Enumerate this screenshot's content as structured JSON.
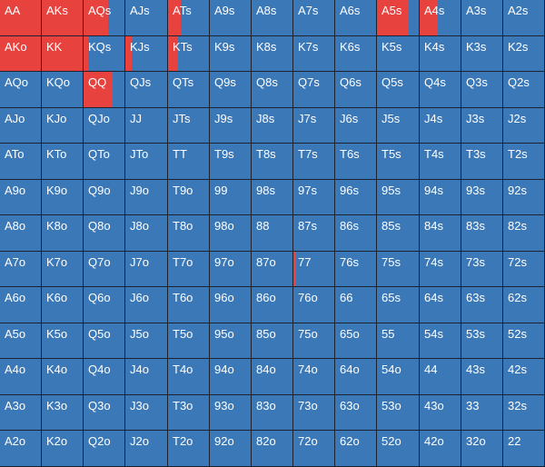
{
  "colors": {
    "fold": "#3b78b8",
    "raise": "#e8423f",
    "grid_line": "#1b2230",
    "label": "#ffffff"
  },
  "rows": [
    [
      [
        "AA",
        1.0
      ],
      [
        "AKs",
        1.0
      ],
      [
        "AQs",
        0.6
      ],
      [
        "AJs",
        0
      ],
      [
        "ATs",
        0.3
      ],
      [
        "A9s",
        0
      ],
      [
        "A8s",
        0
      ],
      [
        "A7s",
        0
      ],
      [
        "A6s",
        0
      ],
      [
        "A5s",
        0.75
      ],
      [
        "A4s",
        0.45
      ],
      [
        "A3s",
        0
      ],
      [
        "A2s",
        0
      ]
    ],
    [
      [
        "AKo",
        1.0
      ],
      [
        "KK",
        1.0
      ],
      [
        "KQs",
        0.12
      ],
      [
        "KJs",
        0.15
      ],
      [
        "KTs",
        0.25
      ],
      [
        "K9s",
        0
      ],
      [
        "K8s",
        0
      ],
      [
        "K7s",
        0
      ],
      [
        "K6s",
        0
      ],
      [
        "K5s",
        0
      ],
      [
        "K4s",
        0
      ],
      [
        "K3s",
        0
      ],
      [
        "K2s",
        0
      ]
    ],
    [
      [
        "AQo",
        0
      ],
      [
        "KQo",
        0
      ],
      [
        "QQ",
        0.7
      ],
      [
        "QJs",
        0
      ],
      [
        "QTs",
        0
      ],
      [
        "Q9s",
        0
      ],
      [
        "Q8s",
        0
      ],
      [
        "Q7s",
        0
      ],
      [
        "Q6s",
        0
      ],
      [
        "Q5s",
        0
      ],
      [
        "Q4s",
        0
      ],
      [
        "Q3s",
        0
      ],
      [
        "Q2s",
        0
      ]
    ],
    [
      [
        "AJo",
        0
      ],
      [
        "KJo",
        0
      ],
      [
        "QJo",
        0
      ],
      [
        "JJ",
        0
      ],
      [
        "JTs",
        0
      ],
      [
        "J9s",
        0
      ],
      [
        "J8s",
        0
      ],
      [
        "J7s",
        0
      ],
      [
        "J6s",
        0
      ],
      [
        "J5s",
        0
      ],
      [
        "J4s",
        0
      ],
      [
        "J3s",
        0
      ],
      [
        "J2s",
        0
      ]
    ],
    [
      [
        "ATo",
        0
      ],
      [
        "KTo",
        0
      ],
      [
        "QTo",
        0
      ],
      [
        "JTo",
        0
      ],
      [
        "TT",
        0
      ],
      [
        "T9s",
        0
      ],
      [
        "T8s",
        0
      ],
      [
        "T7s",
        0
      ],
      [
        "T6s",
        0
      ],
      [
        "T5s",
        0
      ],
      [
        "T4s",
        0
      ],
      [
        "T3s",
        0
      ],
      [
        "T2s",
        0
      ]
    ],
    [
      [
        "A9o",
        0
      ],
      [
        "K9o",
        0
      ],
      [
        "Q9o",
        0
      ],
      [
        "J9o",
        0
      ],
      [
        "T9o",
        0
      ],
      [
        "99",
        0
      ],
      [
        "98s",
        0
      ],
      [
        "97s",
        0
      ],
      [
        "96s",
        0
      ],
      [
        "95s",
        0
      ],
      [
        "94s",
        0
      ],
      [
        "93s",
        0
      ],
      [
        "92s",
        0
      ]
    ],
    [
      [
        "A8o",
        0
      ],
      [
        "K8o",
        0
      ],
      [
        "Q8o",
        0
      ],
      [
        "J8o",
        0
      ],
      [
        "T8o",
        0
      ],
      [
        "98o",
        0
      ],
      [
        "88",
        0.03
      ],
      [
        "87s",
        0
      ],
      [
        "86s",
        0
      ],
      [
        "85s",
        0
      ],
      [
        "84s",
        0
      ],
      [
        "83s",
        0
      ],
      [
        "82s",
        0
      ]
    ],
    [
      [
        "A7o",
        0
      ],
      [
        "K7o",
        0
      ],
      [
        "Q7o",
        0
      ],
      [
        "J7o",
        0
      ],
      [
        "T7o",
        0
      ],
      [
        "97o",
        0
      ],
      [
        "87o",
        0
      ],
      [
        "77",
        0.06
      ],
      [
        "76s",
        0
      ],
      [
        "75s",
        0
      ],
      [
        "74s",
        0
      ],
      [
        "73s",
        0
      ],
      [
        "72s",
        0
      ]
    ],
    [
      [
        "A6o",
        0
      ],
      [
        "K6o",
        0
      ],
      [
        "Q6o",
        0
      ],
      [
        "J6o",
        0
      ],
      [
        "T6o",
        0
      ],
      [
        "96o",
        0
      ],
      [
        "86o",
        0
      ],
      [
        "76o",
        0
      ],
      [
        "66",
        0
      ],
      [
        "65s",
        0.03
      ],
      [
        "64s",
        0
      ],
      [
        "63s",
        0
      ],
      [
        "62s",
        0
      ]
    ],
    [
      [
        "A5o",
        0
      ],
      [
        "K5o",
        0
      ],
      [
        "Q5o",
        0
      ],
      [
        "J5o",
        0
      ],
      [
        "T5o",
        0
      ],
      [
        "95o",
        0
      ],
      [
        "85o",
        0
      ],
      [
        "75o",
        0
      ],
      [
        "65o",
        0
      ],
      [
        "55",
        0
      ],
      [
        "54s",
        0
      ],
      [
        "53s",
        0
      ],
      [
        "52s",
        0
      ]
    ],
    [
      [
        "A4o",
        0
      ],
      [
        "K4o",
        0
      ],
      [
        "Q4o",
        0
      ],
      [
        "J4o",
        0
      ],
      [
        "T4o",
        0
      ],
      [
        "94o",
        0
      ],
      [
        "84o",
        0
      ],
      [
        "74o",
        0
      ],
      [
        "64o",
        0
      ],
      [
        "54o",
        0
      ],
      [
        "44",
        0
      ],
      [
        "43s",
        0
      ],
      [
        "42s",
        0
      ]
    ],
    [
      [
        "A3o",
        0
      ],
      [
        "K3o",
        0
      ],
      [
        "Q3o",
        0
      ],
      [
        "J3o",
        0
      ],
      [
        "T3o",
        0
      ],
      [
        "93o",
        0
      ],
      [
        "83o",
        0
      ],
      [
        "73o",
        0
      ],
      [
        "63o",
        0
      ],
      [
        "53o",
        0
      ],
      [
        "43o",
        0
      ],
      [
        "33",
        0
      ],
      [
        "32s",
        0
      ]
    ],
    [
      [
        "A2o",
        0
      ],
      [
        "K2o",
        0
      ],
      [
        "Q2o",
        0
      ],
      [
        "J2o",
        0
      ],
      [
        "T2o",
        0
      ],
      [
        "92o",
        0
      ],
      [
        "82o",
        0
      ],
      [
        "72o",
        0
      ],
      [
        "62o",
        0
      ],
      [
        "52o",
        0
      ],
      [
        "42o",
        0
      ],
      [
        "32o",
        0
      ],
      [
        "22",
        0
      ]
    ]
  ]
}
